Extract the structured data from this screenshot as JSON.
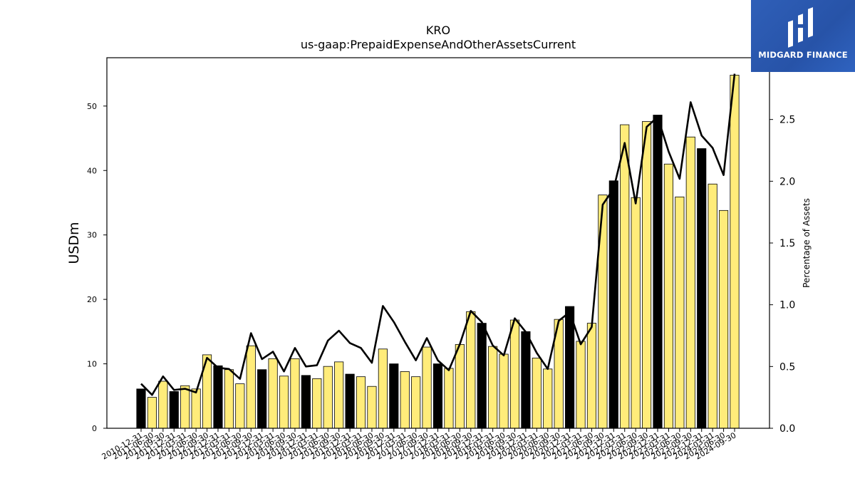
{
  "logo": {
    "text": "MIDGARD FINANCE"
  },
  "chart_data": {
    "type": "bar",
    "title": "KRO",
    "subtitle": "us-gaap:PrepaidExpenseAndOtherAssetsCurrent",
    "ylabel": "USDm",
    "y2label": "Percentage of Assets",
    "ylim": [
      0,
      57.5
    ],
    "y2lim": [
      0,
      3.0
    ],
    "yticks": [
      0,
      10,
      20,
      30,
      40,
      50
    ],
    "y2ticks": [
      "0.0",
      "0.5",
      "1.0",
      "1.5",
      "2.0",
      "2.5"
    ],
    "colors": {
      "annual": "#000000",
      "quarterly": "#ffec7a",
      "line": "#000000"
    },
    "categories": [
      "2010-12-31",
      "2011-06-30",
      "2011-09-30",
      "2011-12-31",
      "2012-03-31",
      "2012-06-30",
      "2012-09-30",
      "2012-12-31",
      "2013-03-31",
      "2013-06-30",
      "2013-09-30",
      "2013-12-31",
      "2014-03-31",
      "2014-06-30",
      "2014-09-30",
      "2014-12-31",
      "2015-03-31",
      "2015-06-30",
      "2015-09-30",
      "2015-12-31",
      "2016-03-31",
      "2016-06-30",
      "2016-09-30",
      "2016-12-31",
      "2017-03-31",
      "2017-06-30",
      "2017-09-30",
      "2017-12-31",
      "2018-03-31",
      "2018-06-30",
      "2018-09-30",
      "2018-12-31",
      "2019-03-31",
      "2019-06-30",
      "2019-09-30",
      "2019-12-31",
      "2020-03-31",
      "2020-06-30",
      "2020-09-30",
      "2020-12-31",
      "2021-03-31",
      "2021-06-30",
      "2021-09-30",
      "2021-12-31",
      "2022-03-31",
      "2022-06-30",
      "2022-09-30",
      "2022-12-31",
      "2023-03-31",
      "2023-06-30",
      "2023-09-30",
      "2023-12-31",
      "2024-03-31",
      "2024-06-30",
      "2024-09-30"
    ],
    "annual_flags": [
      1,
      0,
      0,
      1,
      0,
      0,
      0,
      1,
      0,
      0,
      0,
      1,
      0,
      0,
      0,
      1,
      0,
      0,
      0,
      1,
      0,
      0,
      0,
      1,
      0,
      0,
      0,
      1,
      0,
      0,
      0,
      1,
      0,
      0,
      0,
      1,
      0,
      0,
      0,
      1,
      0,
      0,
      0,
      1,
      0,
      0,
      0,
      1,
      0,
      0,
      0,
      1,
      0,
      0,
      0
    ],
    "series": [
      {
        "name": "USDm",
        "values": [
          6.1,
          4.8,
          7.3,
          5.7,
          6.6,
          6.1,
          11.4,
          9.7,
          9.1,
          6.9,
          12.8,
          9.1,
          10.8,
          8.1,
          10.8,
          8.2,
          7.7,
          9.6,
          10.3,
          8.4,
          8.0,
          6.5,
          12.3,
          10.0,
          8.8,
          8.0,
          12.6,
          10.0,
          9.3,
          13.0,
          18.1,
          16.3,
          12.7,
          11.5,
          16.8,
          15.0,
          10.9,
          9.2,
          16.9,
          18.9,
          13.5,
          16.3,
          36.2,
          38.4,
          47.1,
          35.8,
          47.6,
          48.6,
          41.0,
          35.9,
          45.2,
          43.4,
          37.9,
          33.8,
          54.8
        ]
      },
      {
        "name": "Percentage of Assets",
        "values": [
          0.36,
          0.27,
          0.42,
          0.31,
          0.32,
          0.29,
          0.57,
          0.49,
          0.48,
          0.4,
          0.77,
          0.56,
          0.62,
          0.46,
          0.65,
          0.5,
          0.51,
          0.71,
          0.79,
          0.69,
          0.65,
          0.53,
          0.99,
          0.86,
          0.7,
          0.55,
          0.73,
          0.55,
          0.47,
          0.68,
          0.95,
          0.86,
          0.67,
          0.59,
          0.89,
          0.78,
          0.61,
          0.48,
          0.87,
          0.94,
          0.68,
          0.82,
          1.81,
          1.94,
          2.31,
          1.82,
          2.44,
          2.52,
          2.24,
          2.02,
          2.64,
          2.37,
          2.27,
          2.05,
          2.87
        ]
      }
    ]
  }
}
